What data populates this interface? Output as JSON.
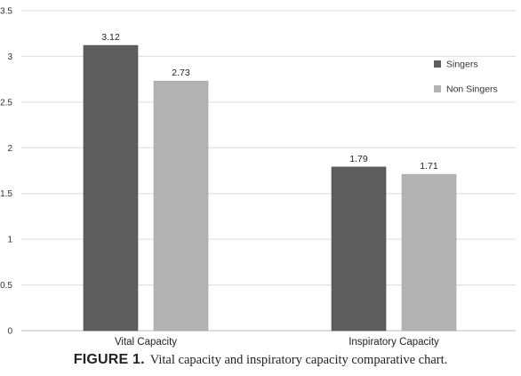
{
  "chart_data": {
    "type": "bar",
    "categories": [
      "Vital Capacity",
      "Inspiratory Capacity"
    ],
    "series": [
      {
        "name": "Singers",
        "values": [
          3.12,
          1.79
        ],
        "color": "#5e5e5e"
      },
      {
        "name": "Non Singers",
        "values": [
          2.73,
          1.71
        ],
        "color": "#b3b3b3"
      }
    ],
    "data_labels": [
      [
        "3.12",
        "1.79"
      ],
      [
        "2.73",
        "1.71"
      ]
    ],
    "ylim": [
      0,
      3.5
    ],
    "yticks": [
      0,
      0.5,
      1,
      1.5,
      2,
      2.5,
      3,
      3.5
    ],
    "ytick_labels": [
      "0",
      "0.5",
      "1",
      "1.5",
      "2",
      "2.5",
      "3",
      "3.5"
    ],
    "grid": true,
    "legend_position": "right",
    "title": "",
    "xlabel": "",
    "ylabel": ""
  },
  "caption": {
    "label": "FIGURE 1.",
    "text": "Vital capacity and inspiratory capacity comparative chart."
  }
}
